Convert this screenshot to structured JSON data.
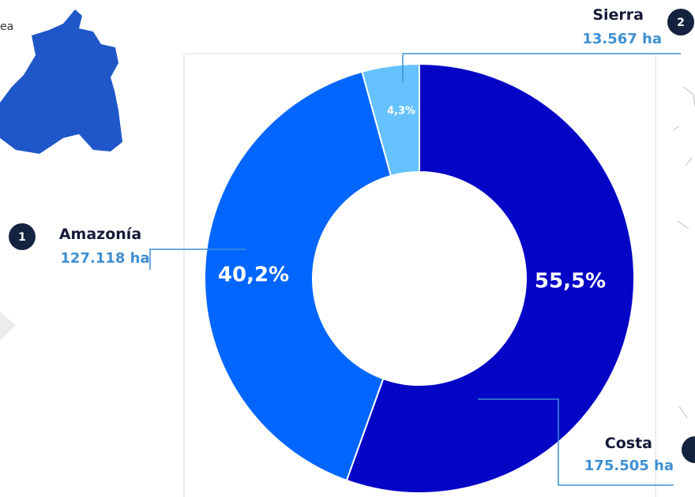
{
  "fragment": "ea",
  "chart_data": {
    "type": "donut",
    "categories": [
      "Costa",
      "Amazonía",
      "Sierra"
    ],
    "values": [
      55.5,
      40.2,
      4.3
    ],
    "value_labels": [
      "55,5%",
      "40,2%",
      "4,3%"
    ],
    "colors": [
      "#0505c6",
      "#0066ff",
      "#66c2ff"
    ],
    "area_labels": [
      "175.505 ha",
      "127.118 ha",
      "13.567 ha"
    ],
    "callout_numbers": [
      null,
      1,
      2
    ]
  }
}
